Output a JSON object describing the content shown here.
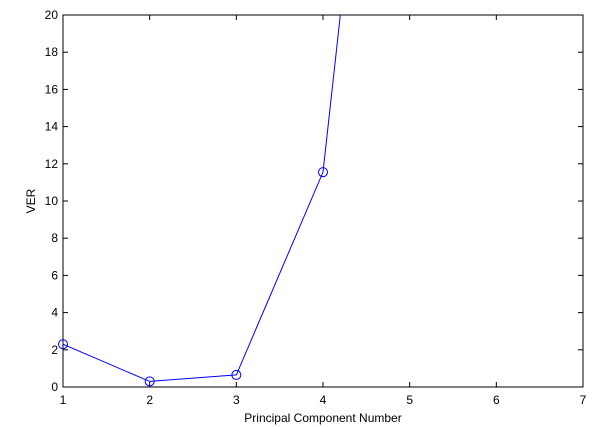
{
  "chart_data": {
    "type": "line",
    "xlabel": "Principal Component Number",
    "ylabel": "VER",
    "xlim": [
      1,
      7
    ],
    "ylim": [
      0,
      20
    ],
    "xticks": [
      1,
      2,
      3,
      4,
      5,
      6,
      7
    ],
    "yticks": [
      0,
      2,
      4,
      6,
      8,
      10,
      12,
      14,
      16,
      18,
      20
    ],
    "grid": false,
    "series": [
      {
        "x": [
          1,
          2,
          3,
          4,
          4.2
        ],
        "y": [
          2.3,
          0.3,
          0.65,
          11.55,
          20
        ],
        "markers": [
          true,
          true,
          true,
          true,
          false
        ],
        "color": "#0000ff",
        "marker": "circle"
      }
    ]
  }
}
